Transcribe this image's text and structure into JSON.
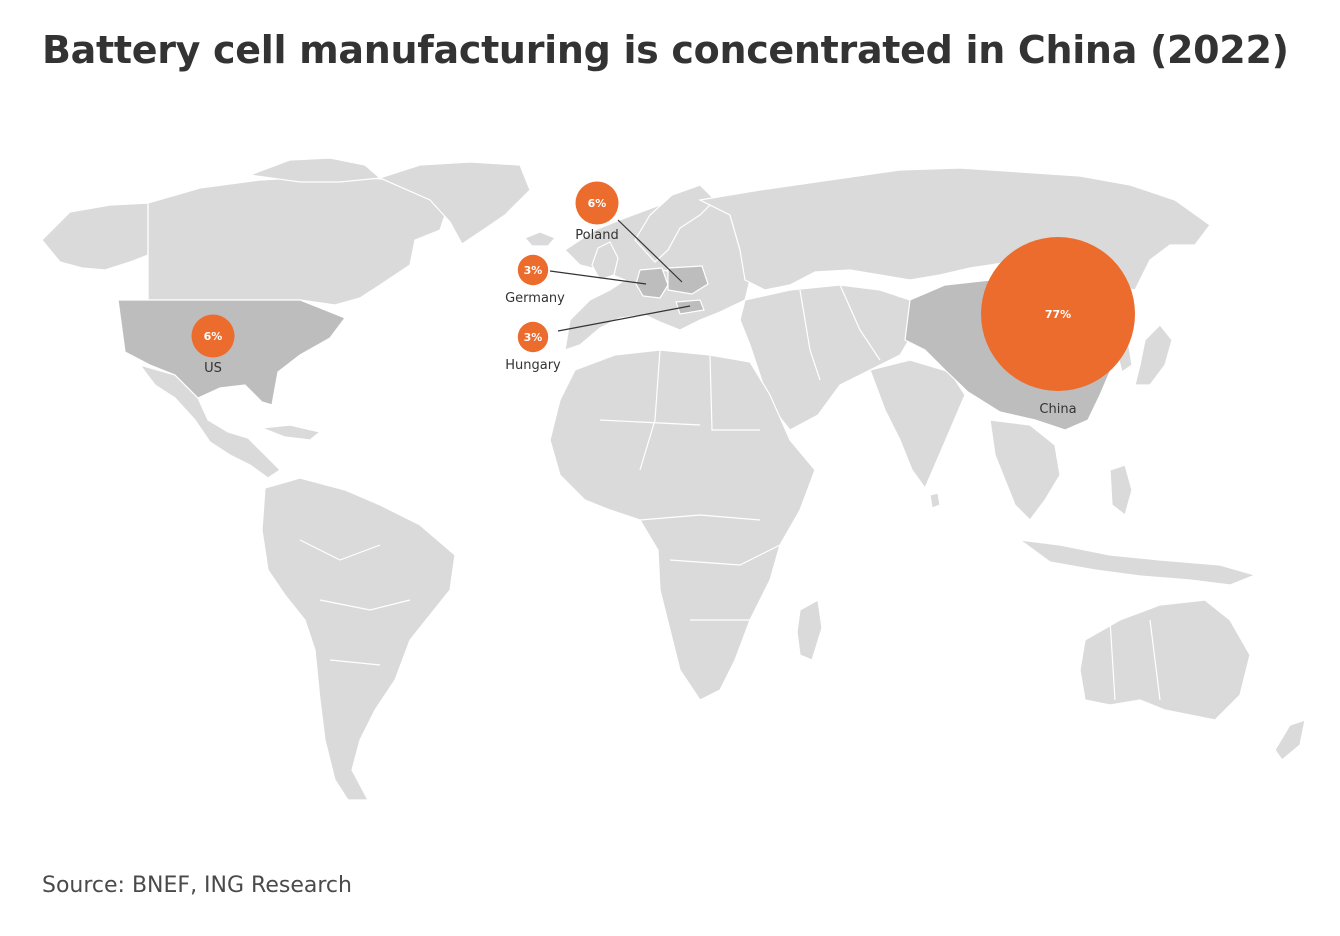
{
  "title": "Battery cell manufacturing is concentrated in China (2022)",
  "source": "Source: BNEF, ING Research",
  "colors": {
    "bubble": "#ec6c2d",
    "land": "#dadada",
    "highlight": "#bdbdbd",
    "text": "#333333"
  },
  "countries": [
    {
      "id": "us",
      "name": "US",
      "value": "6%",
      "share": 6
    },
    {
      "id": "poland",
      "name": "Poland",
      "value": "6%",
      "share": 6
    },
    {
      "id": "germany",
      "name": "Germany",
      "value": "3%",
      "share": 3
    },
    {
      "id": "hungary",
      "name": "Hungary",
      "value": "3%",
      "share": 3
    },
    {
      "id": "china",
      "name": "China",
      "value": "77%",
      "share": 77
    }
  ]
}
